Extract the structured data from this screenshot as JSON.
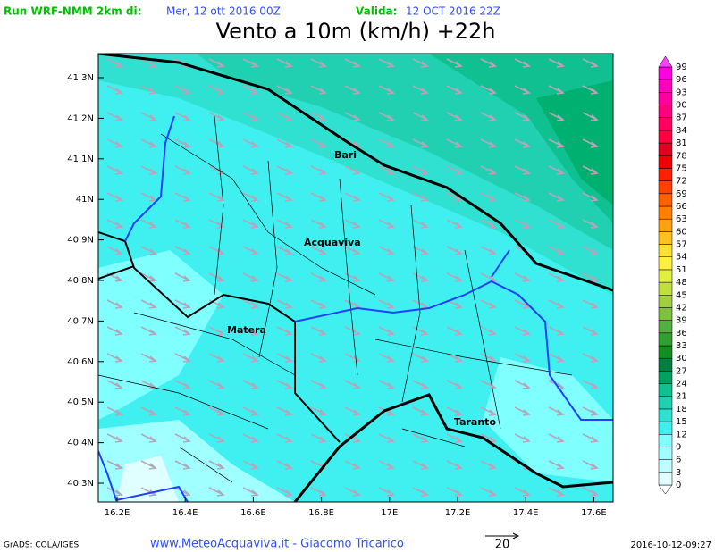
{
  "header": {
    "run_label": "Run WRF-NMM 2km di:",
    "run_date": "Mer, 12 ott 2016 00Z",
    "valid_label": "Valida:",
    "valid_date": "12 OCT 2016 22Z",
    "title": "Vento a 10m (km/h) +22h"
  },
  "map": {
    "lat_labels": [
      "41.3N",
      "41.2N",
      "41.1N",
      "41N",
      "40.9N",
      "40.8N",
      "40.7N",
      "40.6N",
      "40.5N",
      "40.4N",
      "40.3N"
    ],
    "lon_labels": [
      "16.2E",
      "16.4E",
      "16.6E",
      "16.8E",
      "17E",
      "17.2E",
      "17.4E",
      "17.6E"
    ],
    "places": [
      "Bari",
      "Acquaviva",
      "Matera",
      "Taranto"
    ]
  },
  "colorbar": {
    "labels": [
      0,
      3,
      6,
      9,
      12,
      15,
      18,
      21,
      24,
      27,
      30,
      33,
      36,
      39,
      42,
      45,
      48,
      51,
      54,
      57,
      60,
      63,
      66,
      69,
      72,
      75,
      78,
      81,
      84,
      87,
      90,
      93,
      96,
      99
    ],
    "colors": [
      "#ffffff",
      "#e0ffff",
      "#c0ffff",
      "#a0ffff",
      "#80ffff",
      "#40f0f0",
      "#30e0d0",
      "#20d0b0",
      "#10c090",
      "#00a060",
      "#008040",
      "#109020",
      "#30a030",
      "#50b040",
      "#80c040",
      "#a0d040",
      "#c0e040",
      "#e0f040",
      "#fff040",
      "#ffe030",
      "#ffc020",
      "#ffa010",
      "#ff8000",
      "#ff6000",
      "#ff4000",
      "#ff2000",
      "#f00000",
      "#e00020",
      "#ff0040",
      "#ff0060",
      "#ff0080",
      "#ff00a0",
      "#ff00c0",
      "#ff00e0",
      "#ff40ff"
    ]
  },
  "footer": {
    "software": "GrADS: COLA/IGES",
    "credit": "www.MeteoAcquaviva.it - Giacomo Tricarico",
    "arrow_scale": "20",
    "timestamp": "2016-10-12-09:27"
  }
}
